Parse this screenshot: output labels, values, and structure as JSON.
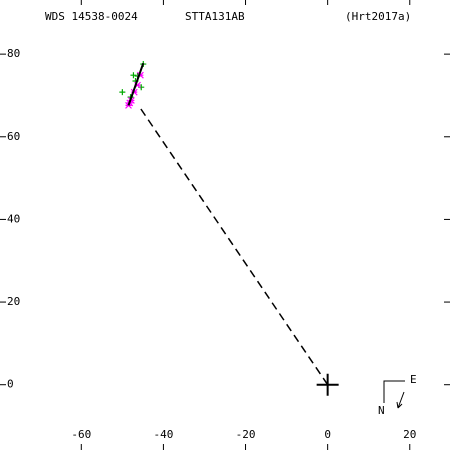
{
  "chart_data": {
    "type": "scatter",
    "labels": [
      "WDS 14538-0024",
      "STTA131AB",
      "(Hrt2017a)"
    ],
    "xlim": [
      -79.8,
      29.8
    ],
    "ylim": [
      -15.8,
      93.1
    ],
    "xticks": [
      -60,
      -40,
      -20,
      0,
      20
    ],
    "yticks": [
      0,
      20,
      40,
      60,
      80
    ],
    "series": [
      {
        "color": "#00aa00",
        "marker": "plus",
        "x": [
          -44.9,
          -50.0,
          -47.3,
          -46.3,
          -45.4,
          -48.0,
          -46.8
        ],
        "y": [
          77.6,
          70.8,
          74.9,
          74.7,
          72.0,
          69.6,
          73.5
        ]
      },
      {
        "color": "#ff00ff",
        "marker": "cross",
        "x": [
          -48.5,
          -47.8,
          -47.1,
          -46.3,
          -45.6,
          -48.2
        ],
        "y": [
          67.6,
          68.8,
          70.8,
          72.5,
          74.9,
          68.2
        ]
      },
      {
        "color": "#000000",
        "marker": "line",
        "x": [
          -48.5,
          -44.9
        ],
        "y": [
          67.6,
          77.8
        ]
      },
      {
        "color": "#000000",
        "marker": "dashed",
        "x": [
          0,
          -45.6
        ],
        "y": [
          0,
          66.9
        ]
      }
    ],
    "primary": {
      "x": 0,
      "y": 0
    },
    "compass": {
      "east": "E",
      "north": "N"
    }
  }
}
